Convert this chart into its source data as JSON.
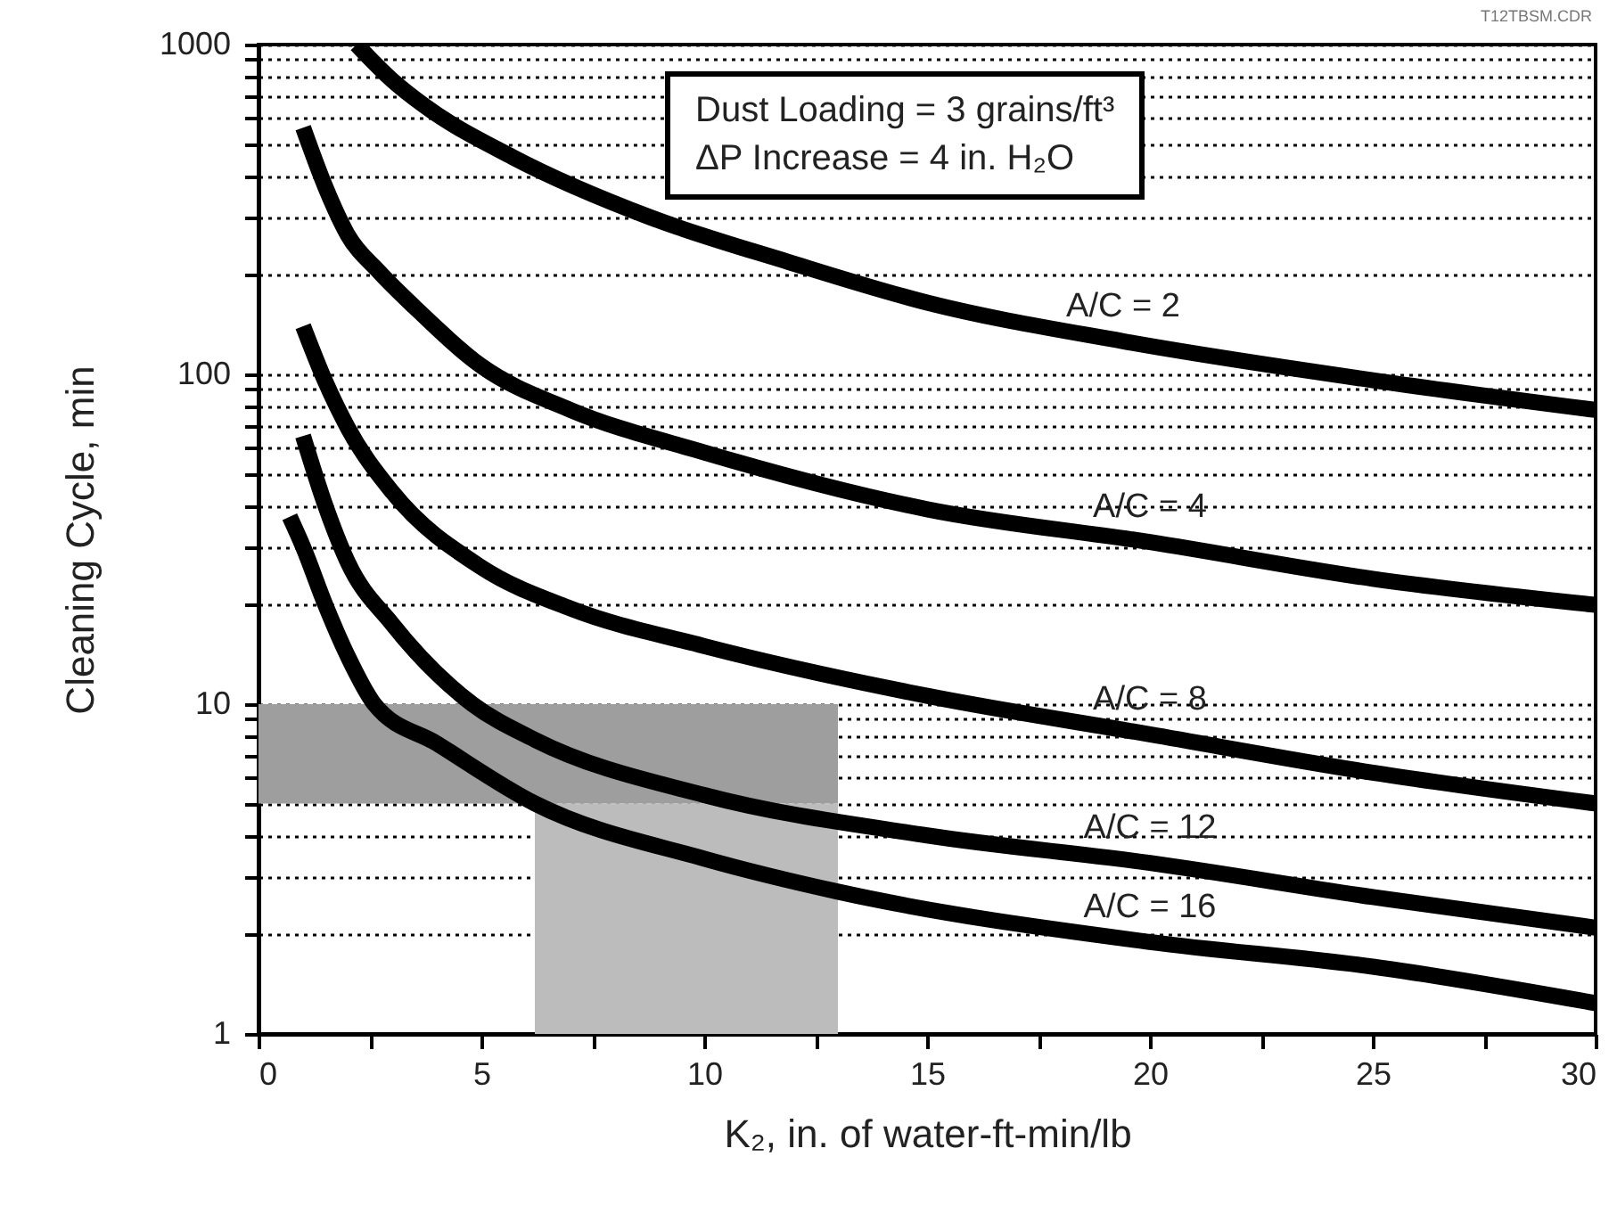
{
  "chart_data": {
    "type": "line",
    "xlabel": "K₂, in. of water-ft-min/lb",
    "ylabel": "Cleaning Cycle, min",
    "annotations": [
      "Dust Loading = 3 grains/ft³",
      "ΔP Increase = 4 in. H₂O",
      "T12TBSM.CDR"
    ],
    "xlim": [
      0,
      30
    ],
    "xticks": [
      0,
      {
        "value": 2.5,
        "label": null
      },
      5,
      {
        "value": 7.5,
        "label": null
      },
      10,
      {
        "value": 12.5,
        "label": null
      },
      15,
      {
        "value": 17.5,
        "label": null
      },
      20,
      {
        "value": 22.5,
        "label": null
      },
      25,
      {
        "value": 27.5,
        "label": null
      },
      30
    ],
    "ylim": [
      1,
      1000
    ],
    "log": true,
    "yticks": [
      1,
      {
        "value": 2,
        "label": null
      },
      {
        "value": 3,
        "label": null
      },
      {
        "value": 4,
        "label": null
      },
      {
        "value": 5,
        "label": null
      },
      {
        "value": 6,
        "label": null
      },
      {
        "value": 7,
        "label": null
      },
      {
        "value": 8,
        "label": null
      },
      {
        "value": 9,
        "label": null
      },
      10,
      {
        "value": 20,
        "label": null
      },
      {
        "value": 30,
        "label": null
      },
      {
        "value": 40,
        "label": null
      },
      {
        "value": 50,
        "label": null
      },
      {
        "value": 60,
        "label": null
      },
      {
        "value": 70,
        "label": null
      },
      {
        "value": 80,
        "label": null
      },
      {
        "value": 90,
        "label": null
      },
      100,
      {
        "value": 200,
        "label": null
      },
      {
        "value": 300,
        "label": null
      },
      {
        "value": 400,
        "label": null
      },
      {
        "value": 500,
        "label": null
      },
      {
        "value": 600,
        "label": null
      },
      {
        "value": 700,
        "label": null
      },
      {
        "value": 800,
        "label": null
      },
      {
        "value": 900,
        "label": null
      },
      1000
    ],
    "grid": "y",
    "marker": "none",
    "line_style": "solid",
    "bands": [
      {
        "axis": "y",
        "from": 5,
        "to": 10,
        "color": "#9e9e9e"
      },
      {
        "axis": "x",
        "from": 6.2,
        "to": 13,
        "color": "#bcbcbc"
      }
    ],
    "series": [
      {
        "name": "A/C = 2",
        "color": "#000000",
        "x": [
          2.2,
          3,
          3.7,
          5.7,
          8.8,
          11.9,
          15,
          19.4,
          25,
          30
        ],
        "values": [
          1000,
          780,
          656,
          456,
          299,
          219,
          165,
          126,
          96,
          78
        ]
      },
      {
        "name": "A/C = 4",
        "color": "#000000",
        "x": [
          1,
          1.5,
          2,
          2.7,
          3.5,
          5,
          7,
          10,
          15,
          20,
          25,
          30
        ],
        "values": [
          560,
          370,
          265,
          205,
          160,
          106,
          78,
          58,
          39,
          31,
          24,
          20
        ]
      },
      {
        "name": "A/C = 8",
        "color": "#000000",
        "x": [
          1,
          1.5,
          2,
          3,
          5,
          7,
          10,
          15,
          20,
          25,
          30
        ],
        "values": [
          140,
          95,
          69,
          44,
          26,
          19.5,
          15,
          10.6,
          8.1,
          6.2,
          5
        ]
      },
      {
        "name": "A/C = 12",
        "color": "#000000",
        "x": [
          1,
          1.5,
          2,
          3,
          4.8,
          6.2,
          10,
          15,
          20,
          25,
          30
        ],
        "values": [
          65,
          40,
          27,
          17.5,
          10,
          7.8,
          5.3,
          4,
          3.3,
          2.6,
          2.1
        ]
      },
      {
        "name": "A/C = 16",
        "color": "#000000",
        "x": [
          0.7,
          1,
          1.5,
          2,
          2.6,
          4,
          6.2,
          10,
          13,
          20,
          25,
          30
        ],
        "values": [
          37,
          30,
          20,
          14,
          10,
          7.6,
          5,
          3.4,
          2.7,
          1.9,
          1.6,
          1.24
        ]
      }
    ]
  }
}
